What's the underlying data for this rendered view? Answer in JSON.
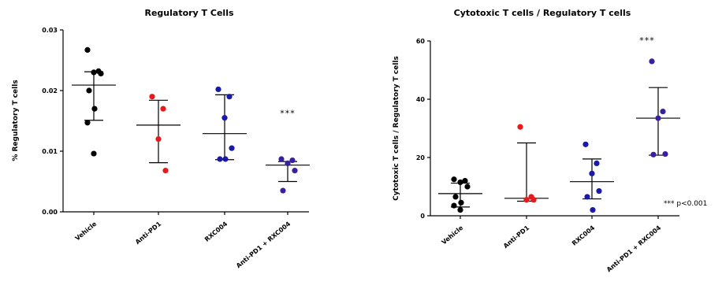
{
  "chart_data": [
    {
      "type": "scatter",
      "title": "Regulatory T Cells",
      "ylabel": "% Regulatory T cells",
      "xlabel": "",
      "ylim": [
        0,
        0.03
      ],
      "yticks": [
        "0.00",
        "0.01",
        "0.02",
        "0.03"
      ],
      "yticks_values": [
        0,
        0.01,
        0.02,
        0.03
      ],
      "categories": [
        "Vehicle",
        "Anti-PD1",
        "RXC004",
        "Anti-PD1 + RXC004"
      ],
      "colors": [
        "#000000",
        "#e8191b",
        "#1a1aa8",
        "#3a1f9e"
      ],
      "groups": [
        {
          "name": "Vehicle",
          "points": [
            0.0267,
            0.0232,
            0.023,
            0.0228,
            0.02,
            0.017,
            0.0147,
            0.0096
          ],
          "mean": 0.0209,
          "sd_low": 0.0151,
          "sd_high": 0.0231
        },
        {
          "name": "Anti-PD1",
          "points": [
            0.019,
            0.017,
            0.012,
            0.0068
          ],
          "mean": 0.0143,
          "sd_low": 0.0081,
          "sd_high": 0.0184
        },
        {
          "name": "RXC004",
          "points": [
            0.0202,
            0.019,
            0.0155,
            0.0105,
            0.0087,
            0.0087
          ],
          "mean": 0.0129,
          "sd_low": 0.0086,
          "sd_high": 0.0193
        },
        {
          "name": "Anti-PD1 + RXC004",
          "points": [
            0.0087,
            0.0085,
            0.008,
            0.0068,
            0.0035
          ],
          "mean": 0.0077,
          "sd_low": 0.005,
          "sd_high": 0.0083
        }
      ],
      "annotations": [
        {
          "text": "***",
          "category": "Anti-PD1 + RXC004",
          "y": 0.0163
        }
      ]
    },
    {
      "type": "scatter",
      "title": "Cytotoxic T cells / Regulatory T cells",
      "ylabel": "Cytotoxic T cells / Regulatory T cells",
      "xlabel": "",
      "ylim": [
        0,
        60
      ],
      "yticks": [
        "0",
        "20",
        "40",
        "60"
      ],
      "yticks_values": [
        0,
        20,
        40,
        60
      ],
      "categories": [
        "Vehicle",
        "Anti-PD1",
        "RXC004",
        "Anti-PD1 + RXC004"
      ],
      "colors": [
        "#000000",
        "#e8191b",
        "#1a1aa8",
        "#3a1f9e"
      ],
      "groups": [
        {
          "name": "Vehicle",
          "points": [
            12.5,
            12.0,
            11.5,
            10.0,
            6.5,
            4.5,
            3.5,
            2.0
          ],
          "mean": 7.6,
          "sd_low": 3.0,
          "sd_high": 11.2
        },
        {
          "name": "Anti-PD1",
          "points": [
            30.5,
            6.5,
            5.5,
            5.5
          ],
          "mean": 6.0,
          "sd_low": 5.0,
          "sd_high": 25.0
        },
        {
          "name": "RXC004",
          "points": [
            24.5,
            18.0,
            14.5,
            8.5,
            6.5,
            2.0
          ],
          "mean": 11.7,
          "sd_low": 5.8,
          "sd_high": 19.5
        },
        {
          "name": "Anti-PD1 + RXC004",
          "points": [
            53.0,
            35.8,
            33.5,
            21.2,
            21.0
          ],
          "mean": 33.5,
          "sd_low": 20.8,
          "sd_high": 44.0
        }
      ],
      "annotations": [
        {
          "text": "***",
          "category": "Anti-PD1 + RXC004",
          "y": 60.3
        }
      ],
      "footnote": "*** p<0.001"
    }
  ]
}
